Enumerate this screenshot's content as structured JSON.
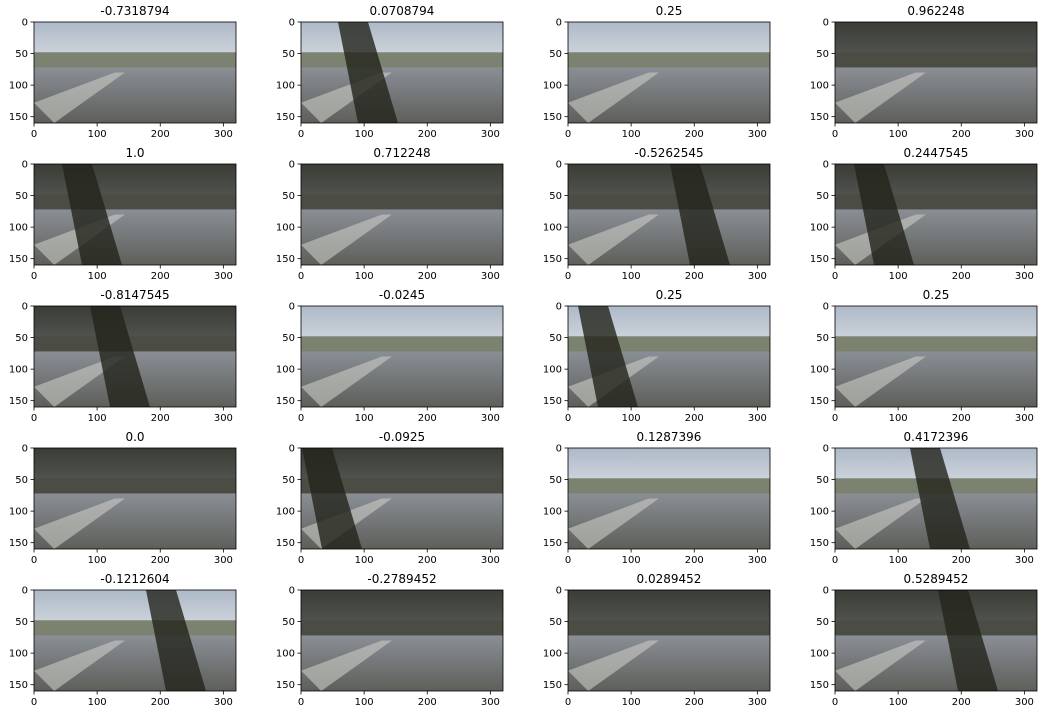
{
  "panels": [
    {
      "title": "-0.7318794"
    },
    {
      "title": "0.0708794"
    },
    {
      "title": "0.25"
    },
    {
      "title": "0.962248"
    },
    {
      "title": "1.0"
    },
    {
      "title": "0.712248"
    },
    {
      "title": "-0.5262545"
    },
    {
      "title": "0.2447545"
    },
    {
      "title": "-0.8147545"
    },
    {
      "title": "-0.0245"
    },
    {
      "title": "0.25"
    },
    {
      "title": "0.25"
    },
    {
      "title": "0.0"
    },
    {
      "title": "-0.0925"
    },
    {
      "title": "0.1287396"
    },
    {
      "title": "0.4172396"
    },
    {
      "title": "-0.1212604"
    },
    {
      "title": "-0.2789452"
    },
    {
      "title": "0.0289452"
    },
    {
      "title": "0.5289452"
    }
  ],
  "xlim": [
    0,
    320
  ],
  "ylim": [
    160,
    0
  ],
  "xticks": [
    0,
    100,
    200,
    300
  ],
  "yticks": [
    0,
    50,
    100,
    150
  ]
}
